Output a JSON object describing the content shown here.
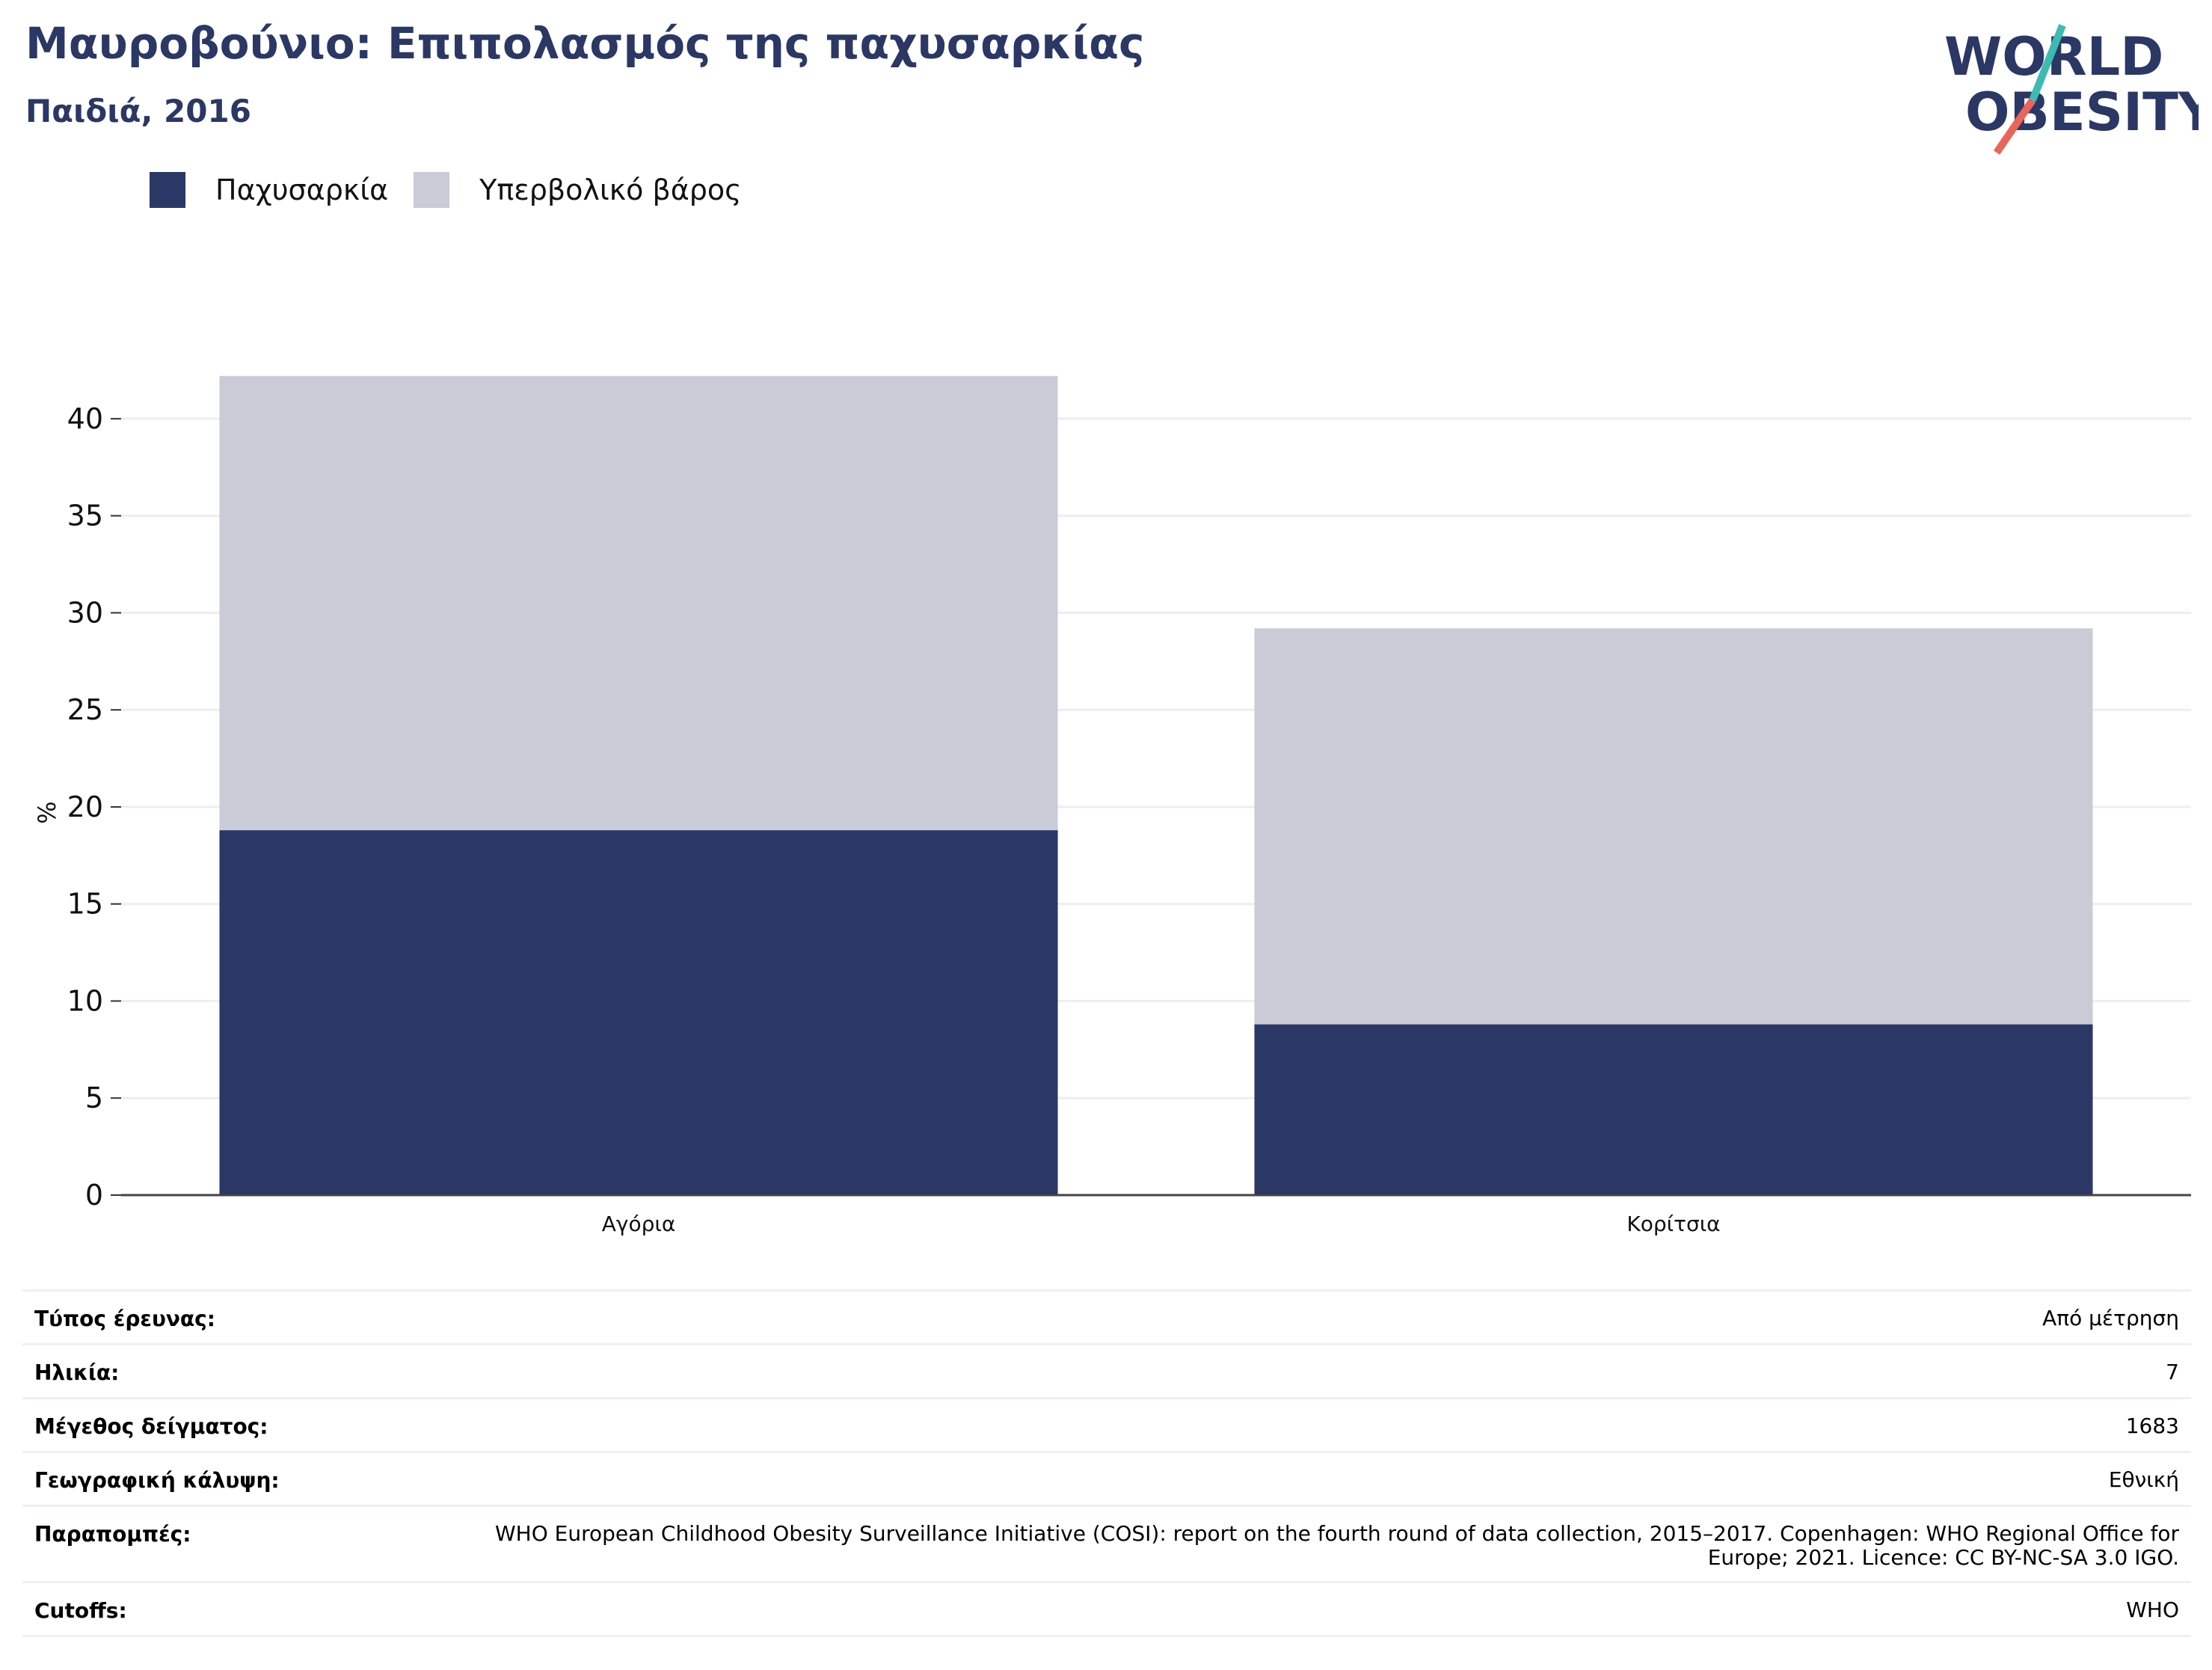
{
  "header": {
    "title": "Μαυροβούνιο: Επιπολασμός της παχυσαρκίας",
    "subtitle": "Παιδιά, 2016"
  },
  "logo": {
    "line1": "WORLD",
    "line2": "OBESITY",
    "slash_top_color": "#3dbbb2",
    "slash_bottom_color": "#e8655a"
  },
  "colors": {
    "obesity": "#2b3765",
    "overweight": "#c9cbd7",
    "title": "#2b3765"
  },
  "legend": {
    "items": [
      {
        "label": "Παχυσαρκία"
      },
      {
        "label": "Υπερβολικό βάρος"
      }
    ]
  },
  "chart_data": {
    "type": "bar",
    "stacked": true,
    "categories": [
      "Αγόρια",
      "Κορίτσια"
    ],
    "series": [
      {
        "name": "Παχυσαρκία",
        "values": [
          18.8,
          8.8
        ]
      },
      {
        "name": "Υπερβολικό βάρος",
        "values": [
          23.4,
          20.4
        ]
      }
    ],
    "ylabel": "%",
    "yticks": [
      0,
      5,
      10,
      15,
      20,
      25,
      30,
      35,
      40
    ],
    "ylim": [
      0,
      42.5
    ],
    "grid": true,
    "legend_position": "top-left"
  },
  "info": {
    "rows": [
      {
        "label": "Τύπος έρευνας:",
        "value": "Από μέτρηση"
      },
      {
        "label": "Ηλικία:",
        "value": "7"
      },
      {
        "label": "Μέγεθος δείγματος:",
        "value": "1683"
      },
      {
        "label": "Γεωγραφική κάλυψη:",
        "value": "Εθνική"
      },
      {
        "label": "Παραπομπές:",
        "value": "WHO European Childhood Obesity Surveillance Initiative (COSI): report on the fourth round of data collection, 2015–2017. Copenhagen: WHO Regional Office for Europe; 2021. Licence: CC BY-NC-SA 3.0 IGO."
      },
      {
        "label": "Cutoffs:",
        "value": "WHO"
      }
    ]
  }
}
